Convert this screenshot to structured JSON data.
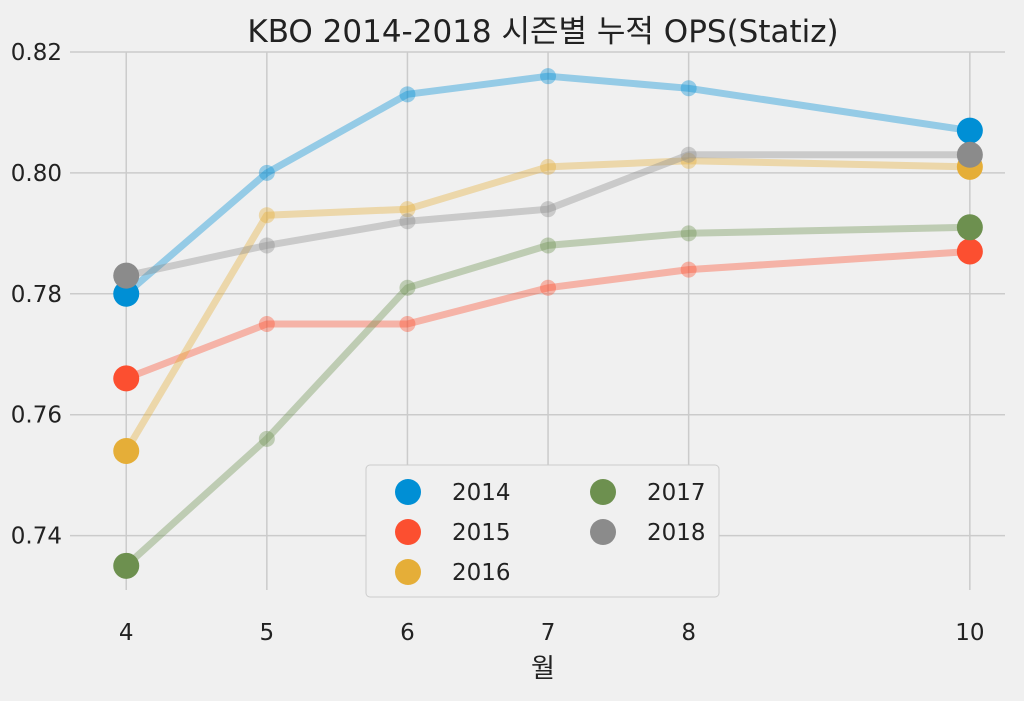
{
  "chart_data": {
    "type": "line",
    "title": "KBO 2014-2018 시즌별 누적 OPS(Statiz)",
    "xlabel": "월",
    "ylabel": "",
    "x": [
      4,
      5,
      6,
      7,
      8,
      10
    ],
    "xticks": [
      "4",
      "5",
      "6",
      "7",
      "8",
      "10"
    ],
    "xlim": [
      3.6,
      10.25
    ],
    "ylim": [
      0.731,
      0.82
    ],
    "yticks": [
      "0.74",
      "0.76",
      "0.78",
      "0.80",
      "0.82"
    ],
    "ytick_values": [
      0.74,
      0.76,
      0.78,
      0.8,
      0.82
    ],
    "grid": true,
    "legend": {
      "location": "bottom-center",
      "columns": 2
    },
    "series": [
      {
        "name": "2014",
        "color": "#008fd5",
        "values": [
          0.78,
          0.8,
          0.813,
          0.816,
          0.814,
          0.807
        ]
      },
      {
        "name": "2015",
        "color": "#fc4f30",
        "values": [
          0.766,
          0.775,
          0.775,
          0.781,
          0.784,
          0.787
        ]
      },
      {
        "name": "2016",
        "color": "#e5ae38",
        "values": [
          0.754,
          0.793,
          0.794,
          0.801,
          0.802,
          0.801
        ]
      },
      {
        "name": "2017",
        "color": "#6d904f",
        "values": [
          0.735,
          0.756,
          0.781,
          0.788,
          0.79,
          0.791
        ]
      },
      {
        "name": "2018",
        "color": "#8b8b8b",
        "values": [
          0.783,
          0.788,
          0.792,
          0.794,
          0.803,
          0.803
        ]
      }
    ]
  }
}
